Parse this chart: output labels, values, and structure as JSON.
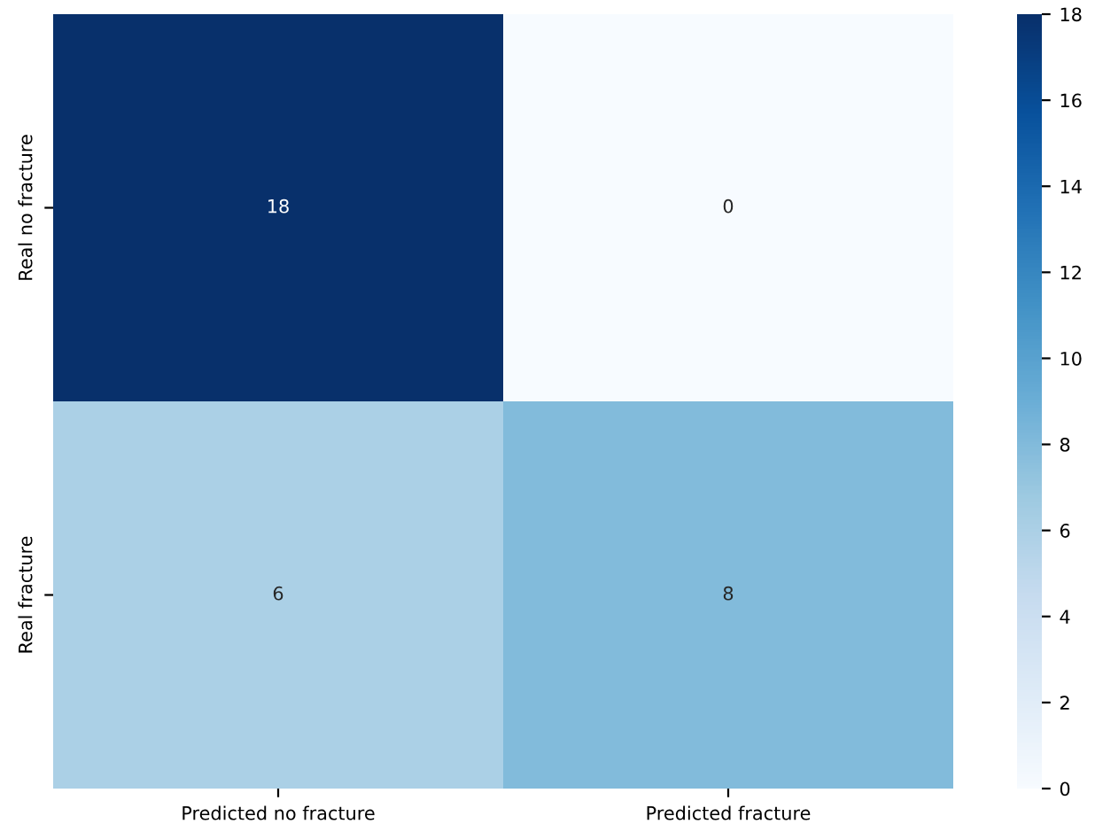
{
  "chart_data": {
    "type": "heatmap",
    "categories": [
      "Predicted no fracture",
      "Predicted fracture"
    ],
    "y_categories": [
      "Real no fracture",
      "Real fracture"
    ],
    "cells": [
      [
        18,
        0
      ],
      [
        6,
        8
      ]
    ],
    "clim": [
      0,
      18
    ],
    "cticks": [
      0,
      2,
      4,
      6,
      8,
      10,
      12,
      14,
      16,
      18
    ],
    "data_labels": true
  }
}
